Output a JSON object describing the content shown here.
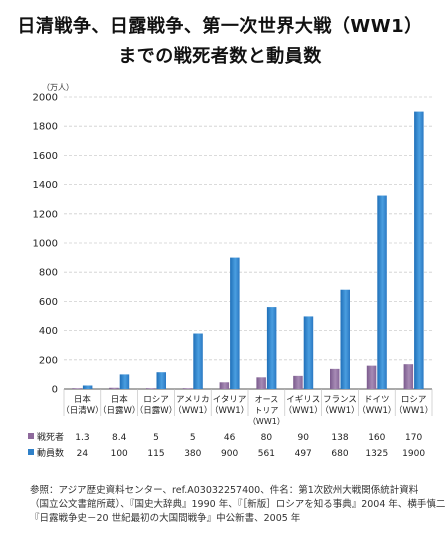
{
  "title": {
    "line1": "日清戦争、日露戦争、第一次世界大戦（WW1）",
    "line2": "までの戦死者数と動員数"
  },
  "chart_data": {
    "type": "bar",
    "unit": "（万人）",
    "ylim": [
      0,
      2000
    ],
    "yticks": [
      0,
      200,
      400,
      600,
      800,
      1000,
      1200,
      1400,
      1600,
      1800,
      2000
    ],
    "grid": true,
    "categories": [
      [
        "日本",
        "（日清W）"
      ],
      [
        "日本",
        "（日露W）"
      ],
      [
        "ロシア",
        "（日露W）"
      ],
      [
        "アメリカ",
        "（WW1）"
      ],
      [
        "イタリア",
        "（WW1）"
      ],
      [
        "オース",
        "トリア",
        "（WW1）"
      ],
      [
        "イギリス",
        "（WW1）"
      ],
      [
        "フランス",
        "（WW1）"
      ],
      [
        "ドイツ",
        "（WW1）"
      ],
      [
        "ロシア",
        "（WW1）"
      ]
    ],
    "series": [
      {
        "name": "戦死者",
        "color": "#8e6a9c",
        "values": [
          1.3,
          8.4,
          5,
          5,
          46,
          80,
          90,
          138,
          160,
          170
        ],
        "labels": [
          "1.3",
          "8.4",
          "5",
          "5",
          "46",
          "80",
          "90",
          "138",
          "160",
          "170"
        ]
      },
      {
        "name": "動員数",
        "color": "#2f80c8",
        "values": [
          24,
          100,
          115,
          380,
          900,
          561,
          497,
          680,
          1325,
          1900
        ],
        "labels": [
          "24",
          "100",
          "115",
          "380",
          "900",
          "561",
          "497",
          "680",
          "1325",
          "1900"
        ]
      }
    ]
  },
  "source": {
    "lines": [
      "参照：アジア歴史資料センター、ref.A03032257400、件名：第1次欧州大戦関係統計資料",
      "（国立公文書館所蔵）、『国史大辞典』1990 年、『［新版］ロシアを知る事典』2004 年、横手慎二",
      "『日露戦争史－20 世紀最初の大国間戦争』中公新書、2005 年"
    ]
  }
}
